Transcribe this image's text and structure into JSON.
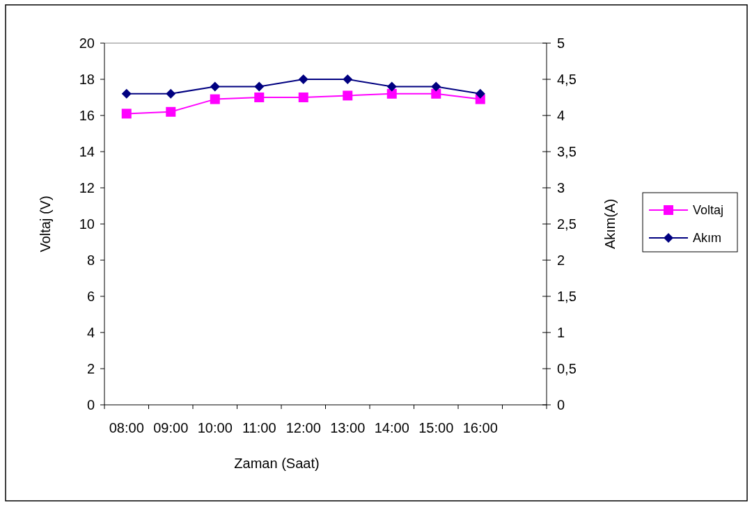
{
  "chart_data": {
    "type": "line",
    "xlabel": "Zaman (Saat)",
    "ylabel": "Voltaj (V)",
    "y2label": "Akım(A)",
    "categories": [
      "08:00",
      "09:00",
      "10:00",
      "11:00",
      "12:00",
      "13:00",
      "14:00",
      "15:00",
      "16:00",
      null
    ],
    "series": [
      {
        "name": "Voltaj",
        "color": "#ff00ff",
        "marker": "square",
        "values": [
          16.1,
          16.2,
          16.9,
          17.0,
          17.0,
          17.1,
          17.2,
          17.2,
          16.9,
          null
        ]
      },
      {
        "name": "Akım",
        "color": "#000080",
        "marker": "diamond",
        "axis": "y2",
        "values": [
          4.3,
          4.3,
          4.4,
          4.4,
          4.5,
          4.5,
          4.4,
          4.4,
          4.3,
          null
        ]
      }
    ],
    "ylim": [
      0,
      20
    ],
    "yticks": [
      0,
      2,
      4,
      6,
      8,
      10,
      12,
      14,
      16,
      18,
      20
    ],
    "y2lim": [
      0,
      5
    ],
    "y2ticks": [
      0,
      {
        "value": 0.5,
        "label": "0,5"
      },
      1,
      {
        "value": 1.5,
        "label": "1,5"
      },
      2,
      {
        "value": 2.5,
        "label": "2,5"
      },
      3,
      {
        "value": 3.5,
        "label": "3,5"
      },
      4,
      {
        "value": 4.5,
        "label": "4,5"
      },
      5
    ],
    "legend": "right",
    "line_style": "solid"
  }
}
